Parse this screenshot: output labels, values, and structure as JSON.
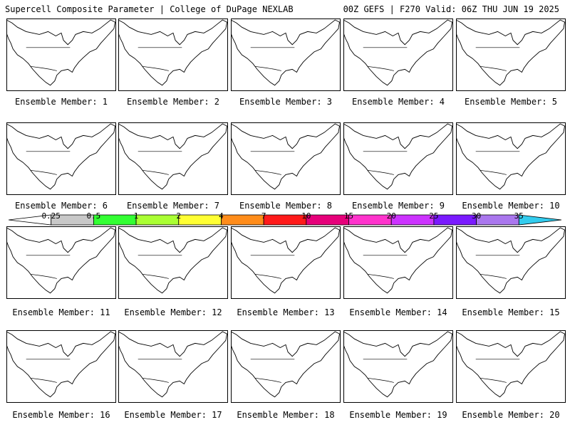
{
  "header": {
    "left_title": "Supercell Composite Parameter | College of DuPage NEXLAB",
    "right_title": "00Z GEFS | F270 Valid: 06Z THU JUN 19 2025"
  },
  "member_prefix": "Ensemble Member: ",
  "members": [
    {
      "label": "Ensemble Member: 1"
    },
    {
      "label": "Ensemble Member: 2"
    },
    {
      "label": "Ensemble Member: 3"
    },
    {
      "label": "Ensemble Member: 4"
    },
    {
      "label": "Ensemble Member: 5"
    },
    {
      "label": "Ensemble Member: 6"
    },
    {
      "label": "Ensemble Member: 7"
    },
    {
      "label": "Ensemble Member: 8"
    },
    {
      "label": "Ensemble Member: 9"
    },
    {
      "label": "Ensemble Member: 10"
    },
    {
      "label": "Ensemble Member: 11"
    },
    {
      "label": "Ensemble Member: 12"
    },
    {
      "label": "Ensemble Member: 13"
    },
    {
      "label": "Ensemble Member: 14"
    },
    {
      "label": "Ensemble Member: 15"
    },
    {
      "label": "Ensemble Member: 16"
    },
    {
      "label": "Ensemble Member: 17"
    },
    {
      "label": "Ensemble Member: 18"
    },
    {
      "label": "Ensemble Member: 19"
    },
    {
      "label": "Ensemble Member: 20"
    }
  ],
  "colorbar": {
    "ticks": [
      "0.25",
      "0.5",
      "1",
      "2",
      "4",
      "7",
      "10",
      "15",
      "20",
      "25",
      "30",
      "35"
    ],
    "colors": [
      "#ffffff",
      "#c8c8c8",
      "#33ff33",
      "#aaff33",
      "#ffff33",
      "#ff8c1a",
      "#ff1a1a",
      "#e6007a",
      "#ff33cc",
      "#cc33ff",
      "#7a1aff",
      "#aa77ee",
      "#33ccee"
    ]
  }
}
